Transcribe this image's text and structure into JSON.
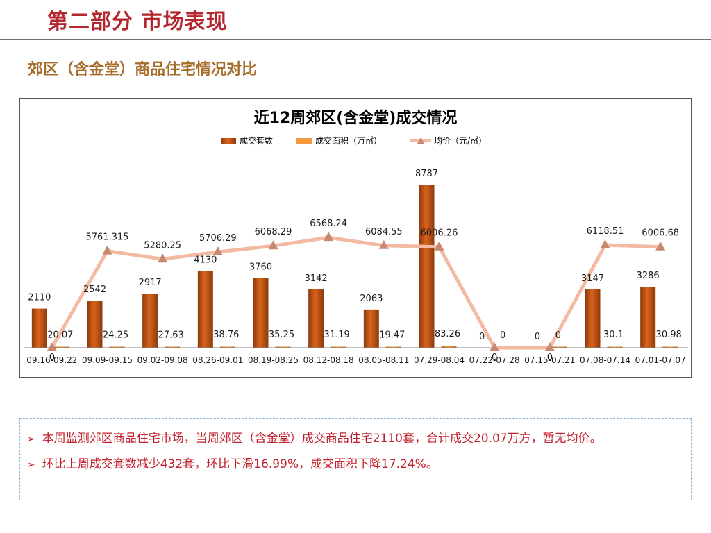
{
  "header": {
    "title": "第二部分 市场表现",
    "section_title": "郊区（含金堂）商品住宅情况对比"
  },
  "chart_data": {
    "type": "bar",
    "title": "近12周郊区(含金堂)成交情况",
    "categories": [
      "09.16-09.22",
      "09.09-09.15",
      "09.02-09.08",
      "08.26-09.01",
      "08.19-08.25",
      "08.12-08.18",
      "08.05-08.11",
      "07.29-08.04",
      "07.22-07.28",
      "07.15-07.21",
      "07.08-07.14",
      "07.01-07.07"
    ],
    "series": [
      {
        "name": "成交套数",
        "type": "bar",
        "axis": "left",
        "values": [
          2110,
          2542,
          2917,
          4130,
          3760,
          3142,
          2063,
          8787,
          0,
          0,
          3147,
          3286
        ]
      },
      {
        "name": "成交面积（万㎡）",
        "type": "bar",
        "axis": "left",
        "values": [
          20.07,
          24.25,
          27.63,
          38.76,
          35.25,
          31.19,
          19.47,
          83.26,
          0,
          0,
          30.1,
          30.98
        ]
      },
      {
        "name": "均价（元/㎡）",
        "type": "line",
        "axis": "right",
        "values": [
          0,
          5761.315,
          5280.25,
          5706.29,
          6068.29,
          6568.24,
          6084.55,
          6006.26,
          0,
          0,
          6118.51,
          6006.68
        ]
      }
    ],
    "data_labels": {
      "units": [
        "2110",
        "2542",
        "2917",
        "4130",
        "3760",
        "3142",
        "2063",
        "8787",
        "0",
        "0",
        "3147",
        "3286"
      ],
      "area": [
        "20.07",
        "24.25",
        "27.63",
        "38.76",
        "35.25",
        "31.19",
        "19.47",
        "83.26",
        "0",
        "0",
        "30.1",
        "30.98"
      ],
      "price": [
        "0",
        "5761.315",
        "5280.25",
        "5706.29",
        "6068.29",
        "6568.24",
        "6084.55",
        "6006.26",
        "0",
        "0",
        "6118.51",
        "6006.68"
      ]
    },
    "legend_position": "top",
    "grid": false,
    "colors": {
      "units": "#d9641c",
      "units_dark": "#8c3a0c",
      "area": "#f29a3d",
      "price": "#f4b9a2",
      "price_marker": "#c7896f",
      "axis": "#7f7f7f",
      "text": "#1a1a1a"
    },
    "ylim_left": [
      0,
      9500
    ],
    "ylim_right": [
      0,
      10500
    ]
  },
  "summary": {
    "line1": "本周监测郊区商品住宅市场，当周郊区（含金堂）成交商品住宅2110套，合计成交20.07万方，暂无均价。",
    "line2": "环比上周成交套数减少432套，环比下滑16.99%，成交面积下降17.24%。",
    "bullet_icon": "arrow-right-icon",
    "bullet_glyph": "➢"
  }
}
